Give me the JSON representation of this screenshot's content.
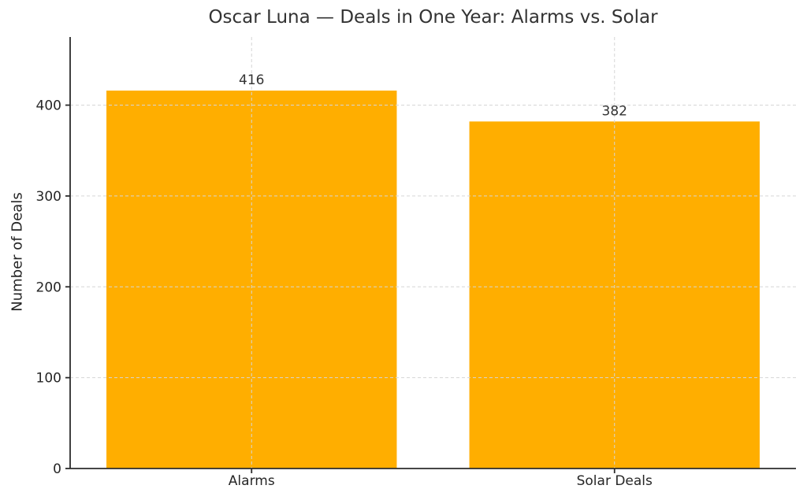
{
  "chart_data": {
    "type": "bar",
    "title": "Oscar Luna — Deals in One Year: Alarms vs. Solar",
    "ylabel": "Number of Deals",
    "xlabel": "",
    "categories": [
      "Alarms",
      "Solar Deals"
    ],
    "values": [
      416,
      382
    ],
    "value_labels": [
      "416",
      "382"
    ],
    "yticks": [
      0,
      100,
      200,
      300,
      400
    ],
    "ylim": [
      0,
      475
    ],
    "grid": "dashed, horizontal and vertical, drawn over bars",
    "legend_position": "none",
    "colors": {
      "bar": "#FFAE00",
      "text": "#262626",
      "grid": "#d6d6d6",
      "spine": "#2b2b2b"
    }
  }
}
